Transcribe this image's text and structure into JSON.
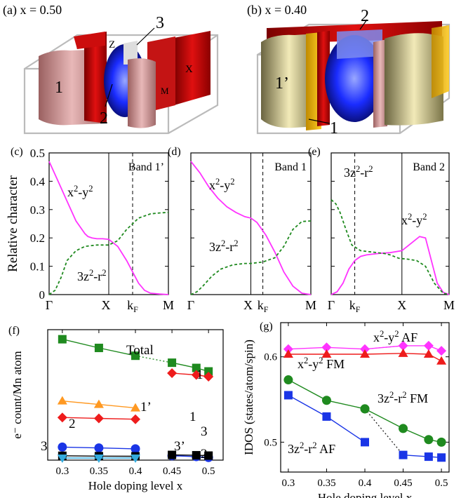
{
  "panels": {
    "a": {
      "label": "(a)  x = 0.50",
      "sheet_labels": [
        "1",
        "2",
        "3"
      ],
      "point_labels": [
        "Z",
        "X",
        "M"
      ]
    },
    "b": {
      "label": "(b)  x = 0.40",
      "sheet_labels": [
        "1’",
        "1",
        "2"
      ]
    }
  },
  "colors": {
    "magenta": "#ff33ff",
    "green": "#1f8a1f",
    "red": "#ee1c1c",
    "orange": "#ff9922",
    "blue": "#1a35e6",
    "cyan": "#33aadd",
    "black": "#000000",
    "gray": "#222222"
  },
  "chart_data": [
    {
      "id": "c",
      "type": "line",
      "panel_label": "(c)",
      "title": "Band 1’",
      "ylabel": "Relative character",
      "ylim": [
        0,
        0.5
      ],
      "yticks": [
        "0",
        "0.1",
        "0.2",
        "0.3",
        "0.4",
        "0.5"
      ],
      "xticks": [
        "Γ",
        "X",
        "k",
        "M"
      ],
      "kF_sub": "F",
      "series": [
        {
          "name": "x2-y2",
          "style": "solid",
          "color": "magenta",
          "x": [
            0,
            0.15,
            0.3,
            0.45,
            0.55,
            0.6,
            0.65,
            0.72,
            0.8,
            0.9,
            1.0,
            1.15,
            1.3,
            1.5,
            1.6,
            1.7,
            1.85,
            2.0
          ],
          "y": [
            0.47,
            0.4,
            0.33,
            0.26,
            0.23,
            0.215,
            0.205,
            0.2,
            0.197,
            0.197,
            0.195,
            0.17,
            0.12,
            0.04,
            0.015,
            0.005,
            0.002,
            0.0
          ]
        },
        {
          "name": "3z2-r2",
          "style": "dashed",
          "color": "green",
          "x": [
            0,
            0.1,
            0.2,
            0.3,
            0.45,
            0.6,
            0.8,
            1.0,
            1.15,
            1.3,
            1.5,
            1.7,
            1.85,
            2.0
          ],
          "y": [
            0.0,
            0.015,
            0.06,
            0.12,
            0.155,
            0.17,
            0.175,
            0.175,
            0.19,
            0.23,
            0.27,
            0.285,
            0.288,
            0.29
          ]
        }
      ],
      "xsplit": [
        1.0,
        1.4
      ],
      "annotations": [
        {
          "text": "x",
          "sup": "2",
          "mid": "-y",
          "sup2": "2",
          "color": "magenta"
        },
        {
          "text": "3z",
          "sup": "2",
          "mid": "-r",
          "sup2": "2",
          "color": "green"
        }
      ]
    },
    {
      "id": "d",
      "type": "line",
      "panel_label": "(d)",
      "title": "Band 1",
      "ylim": [
        0,
        0.5
      ],
      "xticks": [
        "Γ",
        "X",
        "k",
        "M"
      ],
      "kF_sub": "F",
      "series": [
        {
          "name": "x2-y2",
          "style": "solid",
          "color": "magenta",
          "x": [
            0,
            0.15,
            0.3,
            0.45,
            0.6,
            0.75,
            0.9,
            1.0,
            1.1,
            1.25,
            1.4,
            1.55,
            1.7,
            1.85,
            2.0
          ],
          "y": [
            0.47,
            0.43,
            0.38,
            0.34,
            0.31,
            0.29,
            0.275,
            0.27,
            0.255,
            0.21,
            0.15,
            0.08,
            0.03,
            0.005,
            0.0
          ]
        },
        {
          "name": "3z2-r2",
          "style": "dashed",
          "color": "green",
          "x": [
            0,
            0.1,
            0.2,
            0.35,
            0.5,
            0.7,
            0.9,
            1.0,
            1.2,
            1.4,
            1.55,
            1.7,
            1.85,
            2.0
          ],
          "y": [
            0.0,
            0.01,
            0.03,
            0.065,
            0.09,
            0.105,
            0.11,
            0.11,
            0.115,
            0.13,
            0.17,
            0.23,
            0.258,
            0.26
          ]
        }
      ],
      "xsplit": [
        1.0,
        1.2
      ],
      "annotations": [
        {
          "text": "x",
          "sup": "2",
          "mid": "-y",
          "sup2": "2",
          "color": "magenta"
        },
        {
          "text": "3z",
          "sup": "2",
          "mid": "-r",
          "sup2": "2",
          "color": "green"
        }
      ]
    },
    {
      "id": "e",
      "type": "line",
      "panel_label": "(e)",
      "title": "Band 2",
      "ylim": [
        0,
        0.5
      ],
      "xticks": [
        "Γ",
        "k",
        "X",
        "M"
      ],
      "kF_sub": "F",
      "series": [
        {
          "name": "x2-y2",
          "style": "solid",
          "color": "magenta",
          "x": [
            0,
            0.1,
            0.2,
            0.3,
            0.4,
            0.5,
            0.6,
            0.8,
            1.0,
            1.2,
            1.35,
            1.5,
            1.6,
            1.7,
            1.8,
            1.9,
            2.0
          ],
          "y": [
            0.0,
            0.01,
            0.04,
            0.09,
            0.12,
            0.135,
            0.14,
            0.145,
            0.148,
            0.155,
            0.18,
            0.205,
            0.2,
            0.12,
            0.04,
            0.008,
            0.0
          ]
        },
        {
          "name": "3z2-r2",
          "style": "dashed",
          "color": "green",
          "x": [
            0,
            0.08,
            0.15,
            0.25,
            0.35,
            0.5,
            0.7,
            0.9,
            1.0,
            1.15,
            1.3,
            1.45,
            1.6,
            1.75,
            1.9,
            2.0
          ],
          "y": [
            0.335,
            0.32,
            0.29,
            0.23,
            0.175,
            0.155,
            0.15,
            0.145,
            0.14,
            0.128,
            0.125,
            0.12,
            0.1,
            0.04,
            0.005,
            0.0
          ]
        }
      ],
      "xsplit": [
        0.4,
        1.2
      ],
      "annotations": [
        {
          "text": "3z",
          "sup": "2",
          "mid": "-r",
          "sup2": "2",
          "color": "green"
        },
        {
          "text": "x",
          "sup": "2",
          "mid": "-y",
          "sup2": "2",
          "color": "magenta"
        }
      ]
    },
    {
      "id": "f",
      "type": "line",
      "panel_label": "(f)",
      "ylabel": "e⁻ count/Mn atom",
      "xlabel": "Hole doping level x",
      "xlim": [
        0.28,
        0.52
      ],
      "ylim": [
        0,
        0.75
      ],
      "xticks": [
        "0.3",
        "0.35",
        "0.4",
        "0.45",
        "0.5"
      ],
      "series": [
        {
          "name": "Total",
          "color": "green",
          "marker": "square",
          "x": [
            0.3,
            0.35,
            0.4
          ],
          "y": [
            0.695,
            0.645,
            0.6
          ]
        },
        {
          "name": "Total",
          "color": "green",
          "marker": "square",
          "x": [
            0.45,
            0.4833,
            0.5
          ],
          "y": [
            0.56,
            0.53,
            0.51
          ]
        },
        {
          "name": "1’",
          "color": "orange",
          "marker": "triangle",
          "x": [
            0.3,
            0.35,
            0.4
          ],
          "y": [
            0.34,
            0.32,
            0.3
          ]
        },
        {
          "name": "1",
          "color": "red",
          "marker": "diamond",
          "x": [
            0.3,
            0.35,
            0.4
          ],
          "y": [
            0.245,
            0.24,
            0.235
          ]
        },
        {
          "name": "1",
          "color": "red",
          "marker": "diamond",
          "x": [
            0.45,
            0.4833,
            0.5
          ],
          "y": [
            0.5,
            0.49,
            0.48
          ]
        },
        {
          "name": "2",
          "color": "blue",
          "marker": "circle",
          "x": [
            0.3,
            0.35,
            0.4
          ],
          "y": [
            0.075,
            0.07,
            0.065
          ]
        },
        {
          "name": "2",
          "color": "blue",
          "marker": "circle",
          "x": [
            0.45,
            0.4833,
            0.5
          ],
          "y": [
            0.025,
            0.02,
            0.015
          ]
        },
        {
          "name": "3",
          "color": "black",
          "marker": "square",
          "x": [
            0.3,
            0.35,
            0.4
          ],
          "y": [
            0.025,
            0.023,
            0.022
          ]
        },
        {
          "name": "3",
          "color": "black",
          "marker": "square",
          "x": [
            0.45,
            0.4833,
            0.5
          ],
          "y": [
            0.03,
            0.028,
            0.026
          ]
        },
        {
          "name": "3’",
          "color": "cyan",
          "marker": "triangle-down",
          "x": [
            0.3,
            0.35,
            0.4
          ],
          "y": [
            0.012,
            0.012,
            0.012
          ]
        }
      ],
      "dotted_links": [
        {
          "color": "green",
          "from": [
            0.4,
            0.6
          ],
          "to": [
            0.45,
            0.56
          ]
        }
      ],
      "labels": [
        {
          "text": "Total",
          "color": "green"
        },
        {
          "text": "1’",
          "color": "orange"
        },
        {
          "text": "1",
          "color": "red"
        },
        {
          "text": "1",
          "color": "red"
        },
        {
          "text": "2",
          "color": "blue"
        },
        {
          "text": "3",
          "color": "black"
        },
        {
          "text": "3",
          "color": "black"
        },
        {
          "text": "3’",
          "color": "cyan"
        },
        {
          "text": "2",
          "color": "blue"
        }
      ]
    },
    {
      "id": "g",
      "type": "line",
      "panel_label": "(g)",
      "ylabel": "IDOS (states/atom/spin)",
      "xlabel": "Hole doping level x",
      "xlim": [
        0.29,
        0.51
      ],
      "ylim": [
        0.465,
        0.64
      ],
      "xticks": [
        "0.3",
        "0.35",
        "0.4",
        "0.45",
        "0.5"
      ],
      "yticks": [
        "0.5",
        "0.6"
      ],
      "series": [
        {
          "name": "x2-y2 AF",
          "color": "magenta",
          "marker": "diamond",
          "x": [
            0.3,
            0.35,
            0.4,
            0.45,
            0.4833,
            0.5
          ],
          "y": [
            0.609,
            0.611,
            0.609,
            0.613,
            0.613,
            0.607
          ]
        },
        {
          "name": "x2-y2 FM",
          "color": "red",
          "marker": "triangle",
          "x": [
            0.3,
            0.35,
            0.4,
            0.45,
            0.4833,
            0.5
          ],
          "y": [
            0.603,
            0.603,
            0.603,
            0.604,
            0.603,
            0.595
          ]
        },
        {
          "name": "3z2-r2 FM",
          "color": "green",
          "marker": "circle",
          "x": [
            0.3,
            0.35,
            0.4
          ],
          "y": [
            0.573,
            0.549,
            0.539
          ]
        },
        {
          "name": "3z2-r2 FM",
          "color": "green",
          "marker": "circle",
          "x": [
            0.4,
            0.45,
            0.4833,
            0.5
          ],
          "y": [
            0.539,
            0.516,
            0.503,
            0.5
          ]
        },
        {
          "name": "3z2-r2 AF",
          "color": "blue",
          "marker": "square",
          "x": [
            0.3,
            0.35,
            0.4
          ],
          "y": [
            0.555,
            0.53,
            0.5
          ]
        },
        {
          "name": "3z2-r2 AF",
          "color": "blue",
          "marker": "square",
          "x": [
            0.45,
            0.4833,
            0.5
          ],
          "y": [
            0.485,
            0.483,
            0.482
          ]
        }
      ],
      "dotted_links": [
        {
          "color": "magenta",
          "from": [
            0.4,
            0.609
          ],
          "to": [
            0.45,
            0.613
          ]
        },
        {
          "color": "gray",
          "from": [
            0.4,
            0.539
          ],
          "to": [
            0.45,
            0.485
          ]
        }
      ],
      "labels": [
        {
          "text": "x",
          "sup": "2",
          "mid": "-y",
          "sup2": "2",
          "tail": "  AF",
          "color": "magenta"
        },
        {
          "text": "x",
          "sup": "2",
          "mid": "-y",
          "sup2": "2",
          "tail": "  FM",
          "color": "red"
        },
        {
          "text": "3z",
          "sup": "2",
          "mid": "-r",
          "sup2": "2",
          "tail": "  FM",
          "color": "green"
        },
        {
          "text": "3z",
          "sup": "2",
          "mid": "-r",
          "sup2": "2",
          "tail": "  AF",
          "color": "blue"
        }
      ]
    }
  ]
}
